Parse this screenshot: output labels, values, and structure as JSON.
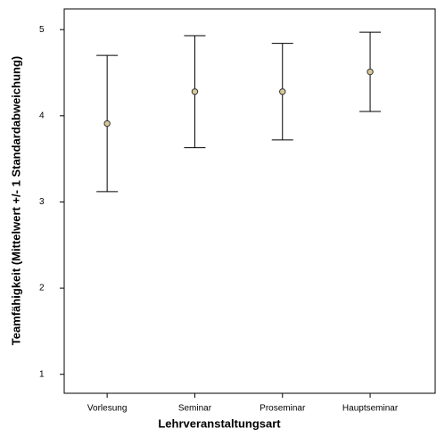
{
  "chart_data": {
    "type": "errorbar",
    "x_label": "Lehrveranstaltungsart",
    "y_label": "Teamfähigkeit (Mittelwert +/- 1 Standardabweichung)",
    "categories": [
      "Vorlesung",
      "Seminar",
      "Proseminar",
      "Hauptseminar"
    ],
    "values": [
      3.91,
      4.28,
      4.28,
      4.51
    ],
    "errors": [
      0.79,
      0.65,
      0.56,
      0.46
    ],
    "color": "#d9c99a",
    "ylim": [
      0.78,
      5.24
    ],
    "yticks": [
      1,
      2,
      3,
      4,
      5
    ],
    "grid": false
  }
}
